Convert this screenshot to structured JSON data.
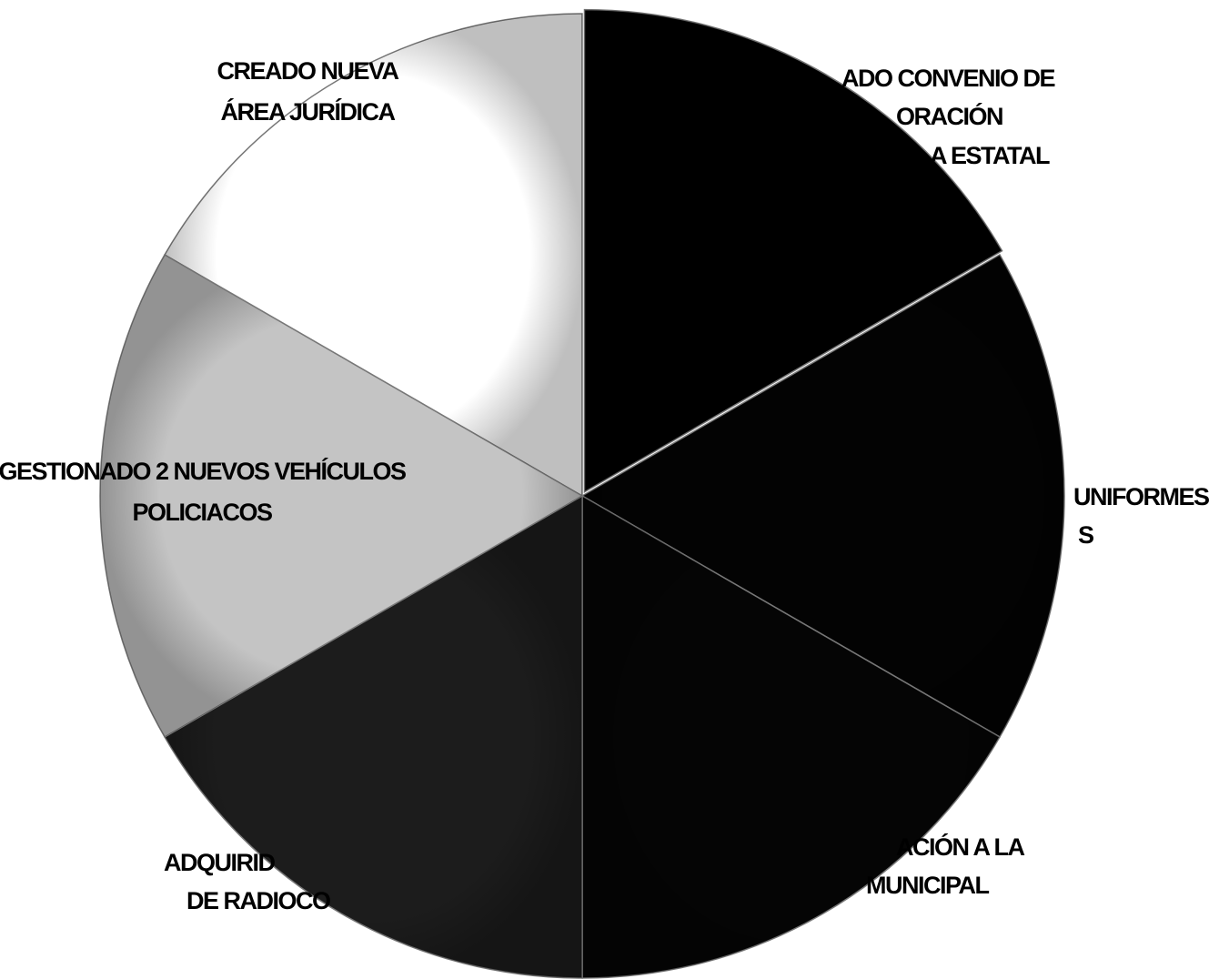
{
  "chart_data": {
    "type": "pie",
    "categories": [
      [
        "ADO CONVENIO DE",
        "ORACIÓN",
        "A ESTATAL"
      ],
      [
        "UNIFORMES",
        "S"
      ],
      [
        "ACIÓN A LA",
        "MUNICIPAL"
      ],
      [
        "ADQUIRID",
        "DE RADIOCO"
      ],
      [
        "GESTIONADO 2 NUEVOS VEHÍCULOS",
        "POLICIACOS"
      ],
      [
        "CREADO NUEVA",
        "ÁREA JURÍDICA"
      ]
    ],
    "values": [
      16.7,
      16.7,
      16.7,
      16.7,
      16.7,
      16.7
    ],
    "colors": [
      "#000000",
      "#030303",
      "#050505",
      "#1c1c1c",
      "#c4c4c4",
      "#ffffff"
    ]
  }
}
